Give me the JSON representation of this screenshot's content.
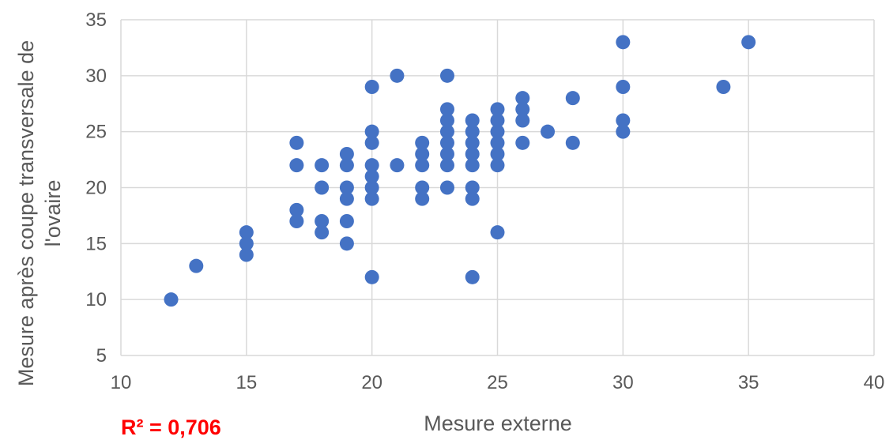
{
  "chart_data": {
    "type": "scatter",
    "title": "",
    "xlabel": "Mesure externe",
    "ylabel_lines": [
      "Mesure après coupe transversale de",
      "l'ovaire"
    ],
    "xlim": [
      10,
      40
    ],
    "ylim": [
      5,
      35
    ],
    "x_ticks": [
      10,
      15,
      20,
      25,
      30,
      35,
      40
    ],
    "y_ticks": [
      5,
      10,
      15,
      20,
      25,
      30,
      35
    ],
    "grid": true,
    "legend": "none",
    "marker_color": "#4472c4",
    "annotation_color": "#ff0000",
    "annotation": "R² = 0,706",
    "series": [
      {
        "points": [
          [
            12,
            10
          ],
          [
            13,
            13
          ],
          [
            15,
            14
          ],
          [
            15,
            15
          ],
          [
            15,
            16
          ],
          [
            17,
            17
          ],
          [
            17,
            18
          ],
          [
            17,
            22
          ],
          [
            17,
            24
          ],
          [
            18,
            16
          ],
          [
            18,
            17
          ],
          [
            18,
            20
          ],
          [
            18,
            22
          ],
          [
            19,
            15
          ],
          [
            19,
            17
          ],
          [
            19,
            19
          ],
          [
            19,
            20
          ],
          [
            19,
            22
          ],
          [
            19,
            23
          ],
          [
            20,
            12
          ],
          [
            20,
            19
          ],
          [
            20,
            20
          ],
          [
            20,
            21
          ],
          [
            20,
            22
          ],
          [
            20,
            24
          ],
          [
            20,
            25
          ],
          [
            20,
            29
          ],
          [
            21,
            22
          ],
          [
            21,
            30
          ],
          [
            22,
            19
          ],
          [
            22,
            20
          ],
          [
            22,
            22
          ],
          [
            22,
            23
          ],
          [
            22,
            24
          ],
          [
            23,
            20
          ],
          [
            23,
            22
          ],
          [
            23,
            23
          ],
          [
            23,
            24
          ],
          [
            23,
            25
          ],
          [
            23,
            26
          ],
          [
            23,
            27
          ],
          [
            23,
            30
          ],
          [
            24,
            12
          ],
          [
            24,
            19
          ],
          [
            24,
            20
          ],
          [
            24,
            22
          ],
          [
            24,
            23
          ],
          [
            24,
            24
          ],
          [
            24,
            25
          ],
          [
            24,
            26
          ],
          [
            25,
            16
          ],
          [
            25,
            22
          ],
          [
            25,
            23
          ],
          [
            25,
            24
          ],
          [
            25,
            25
          ],
          [
            25,
            26
          ],
          [
            25,
            27
          ],
          [
            26,
            24
          ],
          [
            26,
            26
          ],
          [
            26,
            27
          ],
          [
            26,
            28
          ],
          [
            27,
            25
          ],
          [
            28,
            24
          ],
          [
            28,
            28
          ],
          [
            30,
            25
          ],
          [
            30,
            26
          ],
          [
            30,
            29
          ],
          [
            30,
            33
          ],
          [
            34,
            29
          ],
          [
            35,
            33
          ]
        ]
      }
    ]
  }
}
